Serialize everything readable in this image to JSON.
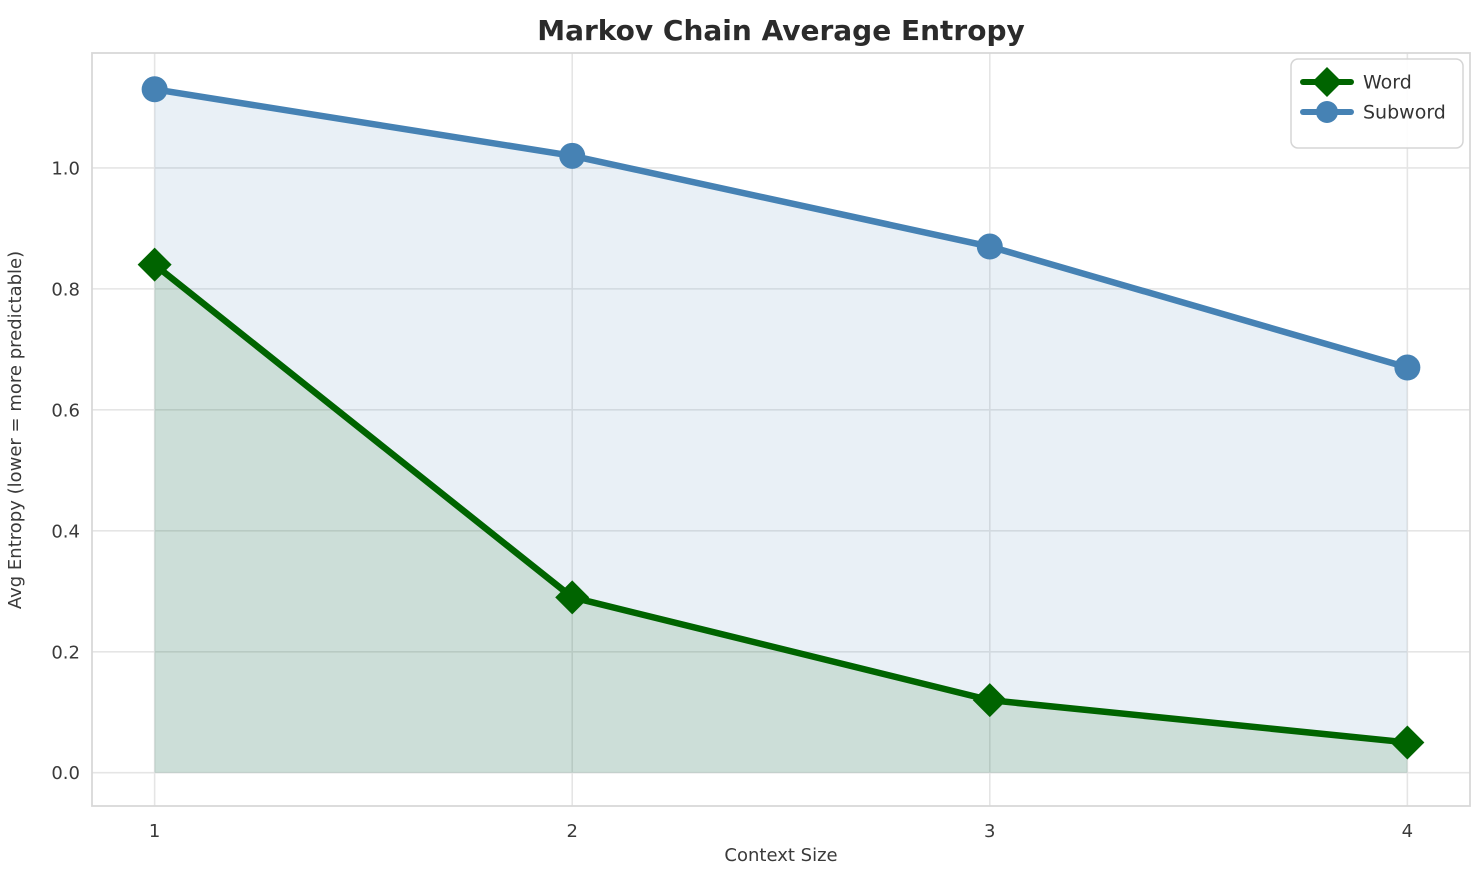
{
  "chart_data": {
    "type": "line",
    "title": "Markov Chain Average Entropy",
    "xlabel": "Context Size",
    "ylabel": "Avg Entropy (lower = more predictable)",
    "x": [
      1,
      2,
      3,
      4
    ],
    "series": [
      {
        "name": "Word",
        "values": [
          0.84,
          0.29,
          0.12,
          0.05
        ],
        "color": "#006400",
        "marker": "diamond",
        "fill_alpha": 0.12
      },
      {
        "name": "Subword",
        "values": [
          1.13,
          1.02,
          0.87,
          0.67
        ],
        "color": "#4682b4",
        "marker": "circle",
        "fill_alpha": 0.12
      }
    ],
    "xticks": [
      1,
      2,
      3,
      4
    ],
    "yticks": [
      0.0,
      0.2,
      0.4,
      0.6,
      0.8,
      1.0
    ],
    "xlim": [
      0.85,
      4.15
    ],
    "ylim": [
      -0.055,
      1.19
    ],
    "grid": true,
    "area_fill_baseline": 0,
    "legend_position": "upper right"
  }
}
